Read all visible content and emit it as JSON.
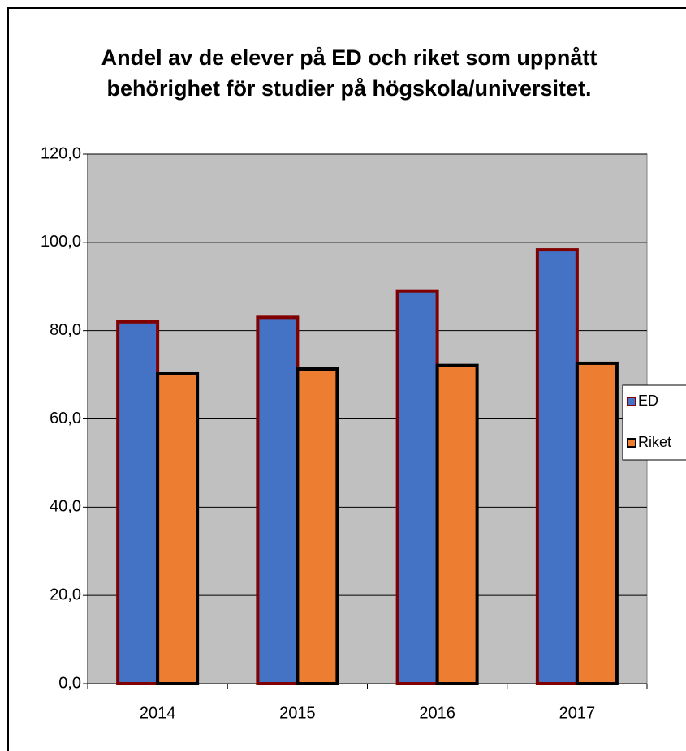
{
  "chart_data": {
    "type": "bar",
    "title": "Andel av de elever på ED och riket som uppnått behörighet för studier på högskola/universitet.",
    "categories": [
      "2014",
      "2015",
      "2016",
      "2017"
    ],
    "series": [
      {
        "name": "ED",
        "color": "#4472c4",
        "edgecolor": "#800000",
        "values": [
          82.0,
          83.0,
          89.0,
          98.3
        ]
      },
      {
        "name": "Riket",
        "color": "#ed7d31",
        "edgecolor": "#000000",
        "values": [
          70.2,
          71.3,
          72.1,
          72.6
        ]
      }
    ],
    "ylim": [
      0,
      120
    ],
    "yticks": [
      {
        "value": 0,
        "label": "0,0"
      },
      {
        "value": 20,
        "label": "20,0"
      },
      {
        "value": 40,
        "label": "40,0"
      },
      {
        "value": 60,
        "label": "60,0"
      },
      {
        "value": 80,
        "label": "80,0"
      },
      {
        "value": 100,
        "label": "100,0"
      },
      {
        "value": 120,
        "label": "120,0"
      }
    ],
    "grid": true,
    "legend": "right"
  }
}
